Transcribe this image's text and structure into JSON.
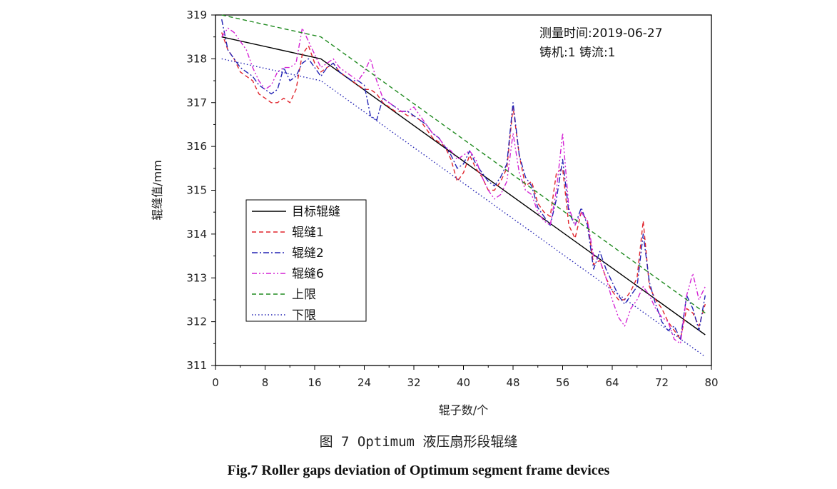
{
  "chart_data": {
    "type": "line",
    "title": "",
    "xlabel": "辊子数/个",
    "ylabel": "辊缝值/mm",
    "xlim": [
      0,
      80
    ],
    "ylim": [
      311,
      319
    ],
    "xticks": [
      0,
      8,
      16,
      24,
      32,
      40,
      48,
      56,
      64,
      72,
      80
    ],
    "yticks": [
      311,
      312,
      313,
      314,
      315,
      316,
      317,
      318,
      319
    ],
    "annotations": [
      "测量时间:2019-06-27",
      "铸机:1    铸流:1"
    ],
    "legend_position": "left-middle",
    "series": [
      {
        "name": "目标辊缝",
        "color": "#000000",
        "dash": "solid",
        "x": [
          1,
          17,
          79
        ],
        "y": [
          318.5,
          318.0,
          311.7
        ]
      },
      {
        "name": "辊缝1",
        "color": "#e0242c",
        "dash": "dashed",
        "x": [
          1,
          2,
          3,
          4,
          5,
          6,
          7,
          8,
          9,
          10,
          11,
          12,
          13,
          14,
          15,
          16,
          17,
          18,
          19,
          20,
          21,
          22,
          23,
          24,
          25,
          26,
          27,
          28,
          29,
          30,
          31,
          32,
          33,
          34,
          35,
          36,
          37,
          38,
          39,
          40,
          41,
          42,
          43,
          44,
          45,
          46,
          47,
          48,
          49,
          50,
          51,
          52,
          53,
          54,
          55,
          56,
          57,
          58,
          59,
          60,
          61,
          62,
          63,
          64,
          65,
          66,
          67,
          68,
          69,
          70,
          71,
          72,
          73,
          74,
          75,
          76,
          77,
          78,
          79
        ],
        "y": [
          318.6,
          318.2,
          318.0,
          317.7,
          317.6,
          317.5,
          317.2,
          317.1,
          317.0,
          317.0,
          317.1,
          317.0,
          317.3,
          318.1,
          318.3,
          317.9,
          317.7,
          317.8,
          317.9,
          317.7,
          317.6,
          317.5,
          317.4,
          317.3,
          317.3,
          317.2,
          317.0,
          316.9,
          316.8,
          316.8,
          316.7,
          316.7,
          316.6,
          316.4,
          316.2,
          316.1,
          316.0,
          315.7,
          315.2,
          315.4,
          315.8,
          315.5,
          315.3,
          315.0,
          315.0,
          315.2,
          315.5,
          316.9,
          315.8,
          315.1,
          315.2,
          314.7,
          314.5,
          314.4,
          315.4,
          315.5,
          314.2,
          313.9,
          314.5,
          314.3,
          313.3,
          313.4,
          313.0,
          312.7,
          312.5,
          312.5,
          312.7,
          313.0,
          314.3,
          312.8,
          312.5,
          312.3,
          312.0,
          311.8,
          311.6,
          312.3,
          312.2,
          311.9,
          312.4
        ]
      },
      {
        "name": "辊缝2",
        "color": "#2323b4",
        "dash": "dashdot",
        "x": [
          1,
          2,
          3,
          4,
          5,
          6,
          7,
          8,
          9,
          10,
          11,
          12,
          13,
          14,
          15,
          16,
          17,
          18,
          19,
          20,
          21,
          22,
          23,
          24,
          25,
          26,
          27,
          28,
          29,
          30,
          31,
          32,
          33,
          34,
          35,
          36,
          37,
          38,
          39,
          40,
          41,
          42,
          43,
          44,
          45,
          46,
          47,
          48,
          49,
          50,
          51,
          52,
          53,
          54,
          55,
          56,
          57,
          58,
          59,
          60,
          61,
          62,
          63,
          64,
          65,
          66,
          67,
          68,
          69,
          70,
          71,
          72,
          73,
          74,
          75,
          76,
          77,
          78,
          79
        ],
        "y": [
          318.9,
          318.2,
          318.0,
          317.8,
          317.7,
          317.6,
          317.4,
          317.3,
          317.2,
          317.3,
          317.8,
          317.5,
          317.6,
          317.9,
          318.0,
          317.8,
          317.6,
          317.8,
          317.9,
          317.7,
          317.6,
          317.5,
          317.5,
          317.4,
          316.7,
          316.6,
          317.1,
          317.0,
          316.9,
          316.8,
          316.8,
          316.7,
          316.6,
          316.5,
          316.3,
          316.2,
          316.0,
          315.8,
          315.5,
          315.6,
          315.9,
          315.6,
          315.4,
          315.2,
          315.1,
          315.3,
          315.6,
          317.0,
          315.8,
          315.3,
          315.1,
          314.6,
          314.4,
          314.2,
          314.8,
          315.7,
          314.5,
          314.2,
          314.6,
          314.2,
          313.2,
          313.6,
          313.2,
          312.9,
          312.6,
          312.4,
          312.6,
          312.8,
          314.0,
          312.9,
          312.4,
          312.0,
          311.8,
          311.9,
          311.6,
          312.6,
          312.3,
          311.8,
          312.6
        ]
      },
      {
        "name": "辊缝6",
        "color": "#d424d4",
        "dash": "dashdotdot",
        "x": [
          1,
          2,
          3,
          4,
          5,
          6,
          7,
          8,
          9,
          10,
          11,
          12,
          13,
          14,
          15,
          16,
          17,
          18,
          19,
          20,
          21,
          22,
          23,
          24,
          25,
          26,
          27,
          28,
          29,
          30,
          31,
          32,
          33,
          34,
          35,
          36,
          37,
          38,
          39,
          40,
          41,
          42,
          43,
          44,
          45,
          46,
          47,
          48,
          49,
          50,
          51,
          52,
          53,
          54,
          55,
          56,
          57,
          58,
          59,
          60,
          61,
          62,
          63,
          64,
          65,
          66,
          67,
          68,
          69,
          70,
          71,
          72,
          73,
          74,
          75,
          76,
          77,
          78,
          79
        ],
        "y": [
          318.5,
          318.7,
          318.6,
          318.4,
          318.2,
          317.8,
          317.5,
          317.3,
          317.4,
          317.7,
          317.8,
          317.8,
          317.9,
          318.7,
          318.4,
          318.1,
          317.8,
          317.9,
          318.0,
          317.8,
          317.7,
          317.6,
          317.5,
          317.7,
          318.0,
          317.5,
          317.1,
          317.0,
          316.9,
          316.8,
          316.8,
          316.9,
          316.7,
          316.5,
          316.3,
          316.2,
          316.0,
          315.9,
          315.7,
          315.8,
          315.9,
          315.7,
          315.3,
          315.0,
          314.8,
          314.9,
          315.2,
          316.3,
          315.4,
          315.0,
          314.9,
          314.5,
          314.3,
          314.2,
          315.0,
          316.3,
          314.6,
          314.2,
          314.5,
          314.3,
          313.5,
          313.4,
          313.0,
          312.5,
          312.1,
          311.9,
          312.3,
          312.5,
          312.8,
          312.6,
          312.3,
          312.1,
          312.0,
          311.6,
          311.5,
          312.6,
          313.1,
          312.5,
          312.8
        ]
      },
      {
        "name": "上限",
        "color": "#1f8a1f",
        "dash": "dashed",
        "x": [
          1,
          17,
          79
        ],
        "y": [
          319.0,
          318.5,
          312.2
        ]
      },
      {
        "name": "下限",
        "color": "#2323b4",
        "dash": "dotted",
        "x": [
          1,
          17,
          79
        ],
        "y": [
          318.0,
          317.5,
          311.2
        ]
      }
    ]
  },
  "captions": {
    "cn": "图 7 Optimum 液压扇形段辊缝",
    "en": "Fig.7 Roller gaps deviation of Optimum segment frame devices"
  }
}
